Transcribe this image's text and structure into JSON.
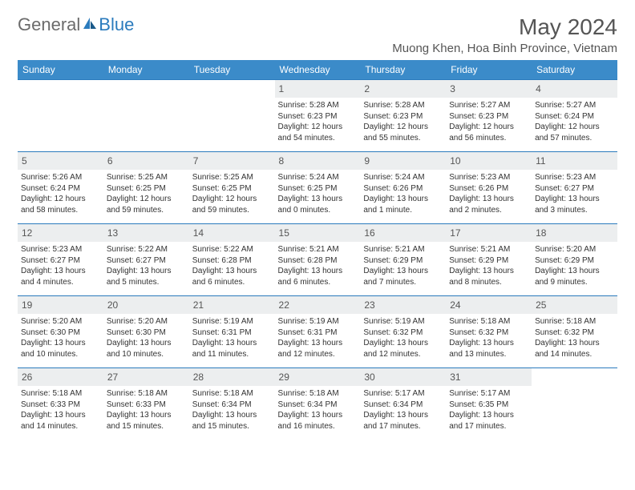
{
  "brand": {
    "general": "General",
    "blue": "Blue"
  },
  "title": "May 2024",
  "location": "Muong Khen, Hoa Binh Province, Vietnam",
  "colors": {
    "header_bg": "#3b8bc9",
    "header_text": "#ffffff",
    "border": "#2b7bbd",
    "daynum_bg": "#eceeef",
    "body_text": "#333333",
    "title_text": "#555555",
    "logo_grey": "#6b6b6b",
    "logo_blue": "#2b7bbd",
    "page_bg": "#ffffff"
  },
  "day_headers": [
    "Sunday",
    "Monday",
    "Tuesday",
    "Wednesday",
    "Thursday",
    "Friday",
    "Saturday"
  ],
  "weeks": [
    [
      {
        "n": "",
        "sr": "",
        "ss": "",
        "dl": ""
      },
      {
        "n": "",
        "sr": "",
        "ss": "",
        "dl": ""
      },
      {
        "n": "",
        "sr": "",
        "ss": "",
        "dl": ""
      },
      {
        "n": "1",
        "sr": "Sunrise: 5:28 AM",
        "ss": "Sunset: 6:23 PM",
        "dl": "Daylight: 12 hours and 54 minutes."
      },
      {
        "n": "2",
        "sr": "Sunrise: 5:28 AM",
        "ss": "Sunset: 6:23 PM",
        "dl": "Daylight: 12 hours and 55 minutes."
      },
      {
        "n": "3",
        "sr": "Sunrise: 5:27 AM",
        "ss": "Sunset: 6:23 PM",
        "dl": "Daylight: 12 hours and 56 minutes."
      },
      {
        "n": "4",
        "sr": "Sunrise: 5:27 AM",
        "ss": "Sunset: 6:24 PM",
        "dl": "Daylight: 12 hours and 57 minutes."
      }
    ],
    [
      {
        "n": "5",
        "sr": "Sunrise: 5:26 AM",
        "ss": "Sunset: 6:24 PM",
        "dl": "Daylight: 12 hours and 58 minutes."
      },
      {
        "n": "6",
        "sr": "Sunrise: 5:25 AM",
        "ss": "Sunset: 6:25 PM",
        "dl": "Daylight: 12 hours and 59 minutes."
      },
      {
        "n": "7",
        "sr": "Sunrise: 5:25 AM",
        "ss": "Sunset: 6:25 PM",
        "dl": "Daylight: 12 hours and 59 minutes."
      },
      {
        "n": "8",
        "sr": "Sunrise: 5:24 AM",
        "ss": "Sunset: 6:25 PM",
        "dl": "Daylight: 13 hours and 0 minutes."
      },
      {
        "n": "9",
        "sr": "Sunrise: 5:24 AM",
        "ss": "Sunset: 6:26 PM",
        "dl": "Daylight: 13 hours and 1 minute."
      },
      {
        "n": "10",
        "sr": "Sunrise: 5:23 AM",
        "ss": "Sunset: 6:26 PM",
        "dl": "Daylight: 13 hours and 2 minutes."
      },
      {
        "n": "11",
        "sr": "Sunrise: 5:23 AM",
        "ss": "Sunset: 6:27 PM",
        "dl": "Daylight: 13 hours and 3 minutes."
      }
    ],
    [
      {
        "n": "12",
        "sr": "Sunrise: 5:23 AM",
        "ss": "Sunset: 6:27 PM",
        "dl": "Daylight: 13 hours and 4 minutes."
      },
      {
        "n": "13",
        "sr": "Sunrise: 5:22 AM",
        "ss": "Sunset: 6:27 PM",
        "dl": "Daylight: 13 hours and 5 minutes."
      },
      {
        "n": "14",
        "sr": "Sunrise: 5:22 AM",
        "ss": "Sunset: 6:28 PM",
        "dl": "Daylight: 13 hours and 6 minutes."
      },
      {
        "n": "15",
        "sr": "Sunrise: 5:21 AM",
        "ss": "Sunset: 6:28 PM",
        "dl": "Daylight: 13 hours and 6 minutes."
      },
      {
        "n": "16",
        "sr": "Sunrise: 5:21 AM",
        "ss": "Sunset: 6:29 PM",
        "dl": "Daylight: 13 hours and 7 minutes."
      },
      {
        "n": "17",
        "sr": "Sunrise: 5:21 AM",
        "ss": "Sunset: 6:29 PM",
        "dl": "Daylight: 13 hours and 8 minutes."
      },
      {
        "n": "18",
        "sr": "Sunrise: 5:20 AM",
        "ss": "Sunset: 6:29 PM",
        "dl": "Daylight: 13 hours and 9 minutes."
      }
    ],
    [
      {
        "n": "19",
        "sr": "Sunrise: 5:20 AM",
        "ss": "Sunset: 6:30 PM",
        "dl": "Daylight: 13 hours and 10 minutes."
      },
      {
        "n": "20",
        "sr": "Sunrise: 5:20 AM",
        "ss": "Sunset: 6:30 PM",
        "dl": "Daylight: 13 hours and 10 minutes."
      },
      {
        "n": "21",
        "sr": "Sunrise: 5:19 AM",
        "ss": "Sunset: 6:31 PM",
        "dl": "Daylight: 13 hours and 11 minutes."
      },
      {
        "n": "22",
        "sr": "Sunrise: 5:19 AM",
        "ss": "Sunset: 6:31 PM",
        "dl": "Daylight: 13 hours and 12 minutes."
      },
      {
        "n": "23",
        "sr": "Sunrise: 5:19 AM",
        "ss": "Sunset: 6:32 PM",
        "dl": "Daylight: 13 hours and 12 minutes."
      },
      {
        "n": "24",
        "sr": "Sunrise: 5:18 AM",
        "ss": "Sunset: 6:32 PM",
        "dl": "Daylight: 13 hours and 13 minutes."
      },
      {
        "n": "25",
        "sr": "Sunrise: 5:18 AM",
        "ss": "Sunset: 6:32 PM",
        "dl": "Daylight: 13 hours and 14 minutes."
      }
    ],
    [
      {
        "n": "26",
        "sr": "Sunrise: 5:18 AM",
        "ss": "Sunset: 6:33 PM",
        "dl": "Daylight: 13 hours and 14 minutes."
      },
      {
        "n": "27",
        "sr": "Sunrise: 5:18 AM",
        "ss": "Sunset: 6:33 PM",
        "dl": "Daylight: 13 hours and 15 minutes."
      },
      {
        "n": "28",
        "sr": "Sunrise: 5:18 AM",
        "ss": "Sunset: 6:34 PM",
        "dl": "Daylight: 13 hours and 15 minutes."
      },
      {
        "n": "29",
        "sr": "Sunrise: 5:18 AM",
        "ss": "Sunset: 6:34 PM",
        "dl": "Daylight: 13 hours and 16 minutes."
      },
      {
        "n": "30",
        "sr": "Sunrise: 5:17 AM",
        "ss": "Sunset: 6:34 PM",
        "dl": "Daylight: 13 hours and 17 minutes."
      },
      {
        "n": "31",
        "sr": "Sunrise: 5:17 AM",
        "ss": "Sunset: 6:35 PM",
        "dl": "Daylight: 13 hours and 17 minutes."
      },
      {
        "n": "",
        "sr": "",
        "ss": "",
        "dl": ""
      }
    ]
  ]
}
